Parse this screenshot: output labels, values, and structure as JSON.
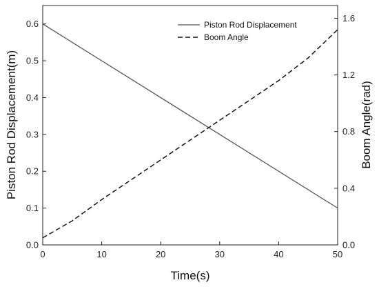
{
  "chart_data": {
    "type": "line",
    "xlabel": "Time(s)",
    "ylabel_left": "Piston Rod Displacement(m)",
    "ylabel_right": "Boom Angle(rad)",
    "xlim": [
      0,
      50
    ],
    "ylim_left": [
      0,
      0.65
    ],
    "ylim_right": [
      0,
      1.69
    ],
    "x_ticks": [
      "0",
      "10",
      "20",
      "30",
      "40",
      "50"
    ],
    "y_left_ticks": [
      "0.0",
      "0.1",
      "0.2",
      "0.3",
      "0.4",
      "0.5",
      "0.6"
    ],
    "y_right_ticks": [
      "0.0",
      "0.4",
      "0.8",
      "1.2",
      "1.6"
    ],
    "grid": false,
    "legend_position": "top-right",
    "series": [
      {
        "name": "Piston Rod Displacement",
        "axis": "left",
        "style": "solid",
        "x": [
          0,
          50
        ],
        "values": [
          0.6,
          0.1
        ]
      },
      {
        "name": "Boom Angle",
        "axis": "right",
        "style": "dashed",
        "x": [
          0,
          5,
          10,
          15,
          20,
          25,
          30,
          35,
          40,
          45,
          50
        ],
        "values": [
          0.05,
          0.17,
          0.32,
          0.46,
          0.6,
          0.74,
          0.88,
          1.02,
          1.16,
          1.32,
          1.52
        ]
      }
    ],
    "colors": {
      "solid": "#555555",
      "dashed": "#111111",
      "axis": "#222222"
    }
  }
}
